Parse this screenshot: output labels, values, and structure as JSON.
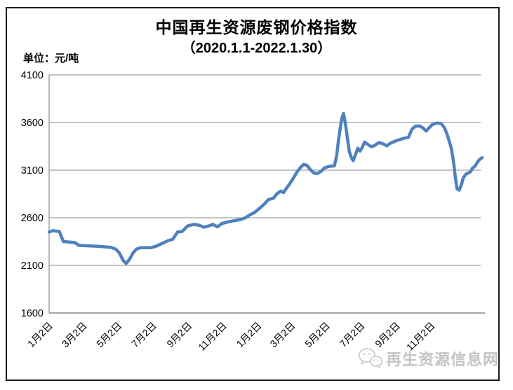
{
  "page": {
    "title": "中国再生资源废钢价格指数",
    "subtitle": "（2020.1.1-2022.1.30）",
    "unit_label": "单位：元/吨",
    "watermark_text": "再生资源信息网",
    "watermark_icon": "chat-bubbles-icon",
    "colors": {
      "line": "#4F81BD",
      "axis": "#8a8a8a",
      "text": "#000000",
      "watermark": "#c3c3c3",
      "frame": "#1c1c1c"
    }
  },
  "chart_data": {
    "type": "line",
    "title": "中国再生资源废钢价格指数（2020.1.1-2022.1.30）",
    "xlabel": "",
    "ylabel": "元/吨",
    "ylim": [
      1600,
      4100
    ],
    "y_ticks": [
      1600,
      2100,
      2600,
      3100,
      3600,
      4100
    ],
    "x_range": [
      "2020-01-02",
      "2022-01-30"
    ],
    "x_ticks": [
      {
        "date": "2020-01-02",
        "label": "1月2日"
      },
      {
        "date": "2020-03-02",
        "label": "3月2日"
      },
      {
        "date": "2020-05-02",
        "label": "5月2日"
      },
      {
        "date": "2020-07-02",
        "label": "7月2日"
      },
      {
        "date": "2020-09-02",
        "label": "9月2日"
      },
      {
        "date": "2020-11-02",
        "label": "11月2日"
      },
      {
        "date": "2021-01-02",
        "label": "1月2日"
      },
      {
        "date": "2021-03-02",
        "label": "3月2日"
      },
      {
        "date": "2021-05-02",
        "label": "5月2日"
      },
      {
        "date": "2021-07-02",
        "label": "7月2日"
      },
      {
        "date": "2021-09-02",
        "label": "9月2日"
      },
      {
        "date": "2021-11-02",
        "label": "11月2日"
      }
    ],
    "grid": "horizontal",
    "legend": "none",
    "series": [
      {
        "name": "废钢价格指数",
        "color": "#4F81BD",
        "points": [
          [
            "2020-01-02",
            2450
          ],
          [
            "2020-01-08",
            2465
          ],
          [
            "2020-01-20",
            2455
          ],
          [
            "2020-01-27",
            2350
          ],
          [
            "2020-02-16",
            2340
          ],
          [
            "2020-02-23",
            2310
          ],
          [
            "2020-03-28",
            2300
          ],
          [
            "2020-04-19",
            2290
          ],
          [
            "2020-04-28",
            2270
          ],
          [
            "2020-05-04",
            2230
          ],
          [
            "2020-05-11",
            2150
          ],
          [
            "2020-05-16",
            2120
          ],
          [
            "2020-05-22",
            2165
          ],
          [
            "2020-05-28",
            2230
          ],
          [
            "2020-06-03",
            2270
          ],
          [
            "2020-06-10",
            2285
          ],
          [
            "2020-06-28",
            2285
          ],
          [
            "2020-07-07",
            2300
          ],
          [
            "2020-07-16",
            2325
          ],
          [
            "2020-07-29",
            2360
          ],
          [
            "2020-08-06",
            2375
          ],
          [
            "2020-08-14",
            2450
          ],
          [
            "2020-08-22",
            2455
          ],
          [
            "2020-09-01",
            2515
          ],
          [
            "2020-09-12",
            2530
          ],
          [
            "2020-09-22",
            2520
          ],
          [
            "2020-09-29",
            2500
          ],
          [
            "2020-10-08",
            2515
          ],
          [
            "2020-10-15",
            2530
          ],
          [
            "2020-10-23",
            2505
          ],
          [
            "2020-10-31",
            2540
          ],
          [
            "2020-11-10",
            2555
          ],
          [
            "2020-11-22",
            2570
          ],
          [
            "2020-12-02",
            2580
          ],
          [
            "2020-12-11",
            2600
          ],
          [
            "2020-12-19",
            2630
          ],
          [
            "2020-12-27",
            2655
          ],
          [
            "2021-01-03",
            2690
          ],
          [
            "2021-01-09",
            2720
          ],
          [
            "2021-01-15",
            2755
          ],
          [
            "2021-01-20",
            2790
          ],
          [
            "2021-01-29",
            2805
          ],
          [
            "2021-02-05",
            2855
          ],
          [
            "2021-02-11",
            2880
          ],
          [
            "2021-02-16",
            2865
          ],
          [
            "2021-02-21",
            2910
          ],
          [
            "2021-02-26",
            2950
          ],
          [
            "2021-03-03",
            2995
          ],
          [
            "2021-03-08",
            3045
          ],
          [
            "2021-03-13",
            3095
          ],
          [
            "2021-03-18",
            3130
          ],
          [
            "2021-03-23",
            3160
          ],
          [
            "2021-03-29",
            3150
          ],
          [
            "2021-04-04",
            3105
          ],
          [
            "2021-04-10",
            3070
          ],
          [
            "2021-04-16",
            3065
          ],
          [
            "2021-04-23",
            3090
          ],
          [
            "2021-04-29",
            3125
          ],
          [
            "2021-05-07",
            3140
          ],
          [
            "2021-05-16",
            3145
          ],
          [
            "2021-05-20",
            3250
          ],
          [
            "2021-05-23",
            3400
          ],
          [
            "2021-05-26",
            3530
          ],
          [
            "2021-05-29",
            3640
          ],
          [
            "2021-06-01",
            3695
          ],
          [
            "2021-06-04",
            3600
          ],
          [
            "2021-06-08",
            3430
          ],
          [
            "2021-06-11",
            3300
          ],
          [
            "2021-06-15",
            3230
          ],
          [
            "2021-06-18",
            3200
          ],
          [
            "2021-06-22",
            3260
          ],
          [
            "2021-06-26",
            3330
          ],
          [
            "2021-06-30",
            3300
          ],
          [
            "2021-07-04",
            3340
          ],
          [
            "2021-07-08",
            3395
          ],
          [
            "2021-07-14",
            3370
          ],
          [
            "2021-07-20",
            3345
          ],
          [
            "2021-07-26",
            3360
          ],
          [
            "2021-08-02",
            3390
          ],
          [
            "2021-08-08",
            3380
          ],
          [
            "2021-08-16",
            3355
          ],
          [
            "2021-08-23",
            3385
          ],
          [
            "2021-08-31",
            3405
          ],
          [
            "2021-09-07",
            3420
          ],
          [
            "2021-09-15",
            3435
          ],
          [
            "2021-09-23",
            3445
          ],
          [
            "2021-09-29",
            3530
          ],
          [
            "2021-10-05",
            3560
          ],
          [
            "2021-10-12",
            3565
          ],
          [
            "2021-10-18",
            3545
          ],
          [
            "2021-10-24",
            3510
          ],
          [
            "2021-10-29",
            3545
          ],
          [
            "2021-11-04",
            3580
          ],
          [
            "2021-11-12",
            3595
          ],
          [
            "2021-11-19",
            3590
          ],
          [
            "2021-11-25",
            3545
          ],
          [
            "2021-11-30",
            3470
          ],
          [
            "2021-12-04",
            3390
          ],
          [
            "2021-12-07",
            3330
          ],
          [
            "2021-12-11",
            3180
          ],
          [
            "2021-12-14",
            3030
          ],
          [
            "2021-12-17",
            2905
          ],
          [
            "2021-12-21",
            2890
          ],
          [
            "2021-12-25",
            2955
          ],
          [
            "2021-12-28",
            3020
          ],
          [
            "2022-01-02",
            3060
          ],
          [
            "2022-01-06",
            3070
          ],
          [
            "2022-01-10",
            3085
          ],
          [
            "2022-01-13",
            3120
          ],
          [
            "2022-01-18",
            3145
          ],
          [
            "2022-01-23",
            3195
          ],
          [
            "2022-01-27",
            3220
          ],
          [
            "2022-01-30",
            3230
          ]
        ]
      }
    ]
  }
}
